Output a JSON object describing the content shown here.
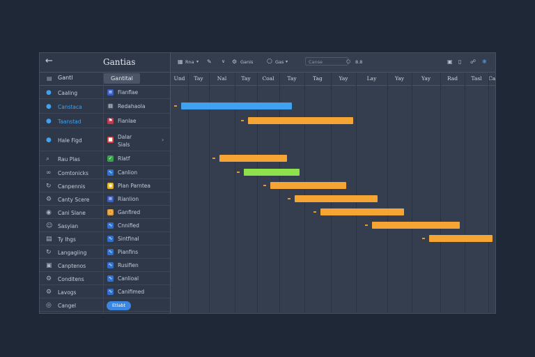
{
  "window": {
    "title": "Gantias",
    "back_icon": "arrow-left-icon"
  },
  "columns": {
    "name_header": "Gantl",
    "tag_header": "Gantital"
  },
  "toolbar": {
    "items": [
      {
        "label": "Rna",
        "icon": "grid-icon"
      },
      {
        "label": "",
        "icon": "pen-icon"
      },
      {
        "label": "",
        "icon": "chevron-down-icon"
      },
      {
        "label": "Ganis",
        "icon": "gear-icon"
      },
      {
        "label": "Gas",
        "icon": "circle-icon"
      }
    ],
    "search_value": "Canse",
    "search_suffix": "8.8",
    "right_icons": [
      "export-icon",
      "file-icon",
      "share-icon",
      "settings-icon"
    ]
  },
  "timeline": {
    "labels": [
      "Und",
      "Tay",
      "Nal",
      "Tay",
      "Coal",
      "Tay",
      "Tag",
      "Yay",
      "Lay",
      "Yay",
      "Yay",
      "Rad",
      "Tasl",
      "Carl"
    ]
  },
  "rows": [
    {
      "name": "Caaling",
      "icon": "circle-fill-icon",
      "icon_blue": true,
      "name_blue": false,
      "sub_icon_color": "#3a5ec8",
      "sub_icon": "layers-icon",
      "sub": "Fianflae"
    },
    {
      "name": "Canstaca",
      "icon": "circle-fill-icon",
      "icon_blue": true,
      "name_blue": true,
      "sub_icon_color": "#3d4657",
      "sub_icon": "doc-icon",
      "sub": "Redahaola"
    },
    {
      "name": "Taanstad",
      "icon": "circle-fill-icon",
      "icon_blue": true,
      "name_blue": true,
      "sub_icon_color": "#c2384a",
      "sub_icon": "flag-icon",
      "sub": "Fianlae"
    },
    {
      "name": "Hale Figd",
      "icon": "circle-fill-icon",
      "icon_blue": true,
      "name_blue": false,
      "sub_icon_color": "#d5433c",
      "sub_icon": "square-icon",
      "sub": "Dalar",
      "sub2": "Sials"
    },
    {
      "name": "Rau Plas",
      "icon": "search-icon",
      "icon_blue": false,
      "name_blue": false,
      "sub_icon_color": "#3aa14c",
      "sub_icon": "check-icon",
      "sub": "Rlatf"
    },
    {
      "name": "Comtonicks",
      "icon": "link-icon",
      "icon_blue": false,
      "name_blue": false,
      "sub_icon_color": "#2f6fce",
      "sub_icon": "wave-icon",
      "sub": "Canlion"
    },
    {
      "name": "Canpennis",
      "icon": "refresh-icon",
      "icon_blue": false,
      "name_blue": false,
      "sub_icon_color": "#e5b422",
      "sub_icon": "pin-icon",
      "sub": "Plan Parntea"
    },
    {
      "name": "Canty Scere",
      "icon": "gear-icon",
      "icon_blue": false,
      "name_blue": false,
      "sub_icon_color": "#3a5ec8",
      "sub_icon": "layers-icon",
      "sub": "Rianlion"
    },
    {
      "name": "Cani Slane",
      "icon": "pin-icon",
      "icon_blue": false,
      "name_blue": false,
      "sub_icon_color": "#e39a2d",
      "sub_icon": "ring-icon",
      "sub": "Ganfired"
    },
    {
      "name": "Sasyian",
      "icon": "person-icon",
      "icon_blue": false,
      "name_blue": false,
      "sub_icon_color": "#2f6fce",
      "sub_icon": "wave-icon",
      "sub": "Cnnified"
    },
    {
      "name": "Ty Ihgs",
      "icon": "doc-icon",
      "icon_blue": false,
      "name_blue": false,
      "sub_icon_color": "#2f6fce",
      "sub_icon": "wave-icon",
      "sub": "Sintfinal"
    },
    {
      "name": "Langagiing",
      "icon": "refresh-icon",
      "icon_blue": false,
      "name_blue": false,
      "sub_icon_color": "#2f6fce",
      "sub_icon": "wave-icon",
      "sub": "Pianfins"
    },
    {
      "name": "Canptenos",
      "icon": "box-icon",
      "icon_blue": false,
      "name_blue": false,
      "sub_icon_color": "#2f6fce",
      "sub_icon": "wave-icon",
      "sub": "Rusifien"
    },
    {
      "name": "Conditens",
      "icon": "gear-icon",
      "icon_blue": false,
      "name_blue": false,
      "sub_icon_color": "#2f6fce",
      "sub_icon": "wave-icon",
      "sub": "Canlioal"
    },
    {
      "name": "Lavogs",
      "icon": "gear-icon",
      "icon_blue": false,
      "name_blue": false,
      "sub_icon_color": "#2f6fce",
      "sub_icon": "wave-icon",
      "sub": "Canifimed"
    },
    {
      "name": "Cangel",
      "icon": "circle-icon",
      "icon_blue": false,
      "name_blue": false,
      "pill": "Etlabt"
    }
  ],
  "tasks": [
    {
      "row": 1,
      "start": 0.6,
      "end": 5.5,
      "color": "#3fa2f0"
    },
    {
      "row": 2,
      "start": 3.6,
      "end": 7.9,
      "color": "#f4a534"
    },
    {
      "row": 4,
      "start": 2.4,
      "end": 5.3,
      "color": "#f4a534"
    },
    {
      "row": 5,
      "start": 3.4,
      "end": 5.8,
      "color": "#8ee04c"
    },
    {
      "row": 6,
      "start": 4.6,
      "end": 7.6,
      "color": "#f4a534"
    },
    {
      "row": 7,
      "start": 5.6,
      "end": 8.7,
      "color": "#f4a534"
    },
    {
      "row": 8,
      "start": 6.6,
      "end": 9.7,
      "color": "#f4a534"
    },
    {
      "row": 9,
      "start": 8.5,
      "end": 11.8,
      "color": "#f4a534"
    },
    {
      "row": 10,
      "start": 10.6,
      "end": 13.6,
      "color": "#f4a534"
    }
  ],
  "colors": {
    "accent": "#3fa2f0",
    "bar_orange": "#f4a534",
    "bar_green": "#8ee04c",
    "pill": "#3a86e0"
  }
}
